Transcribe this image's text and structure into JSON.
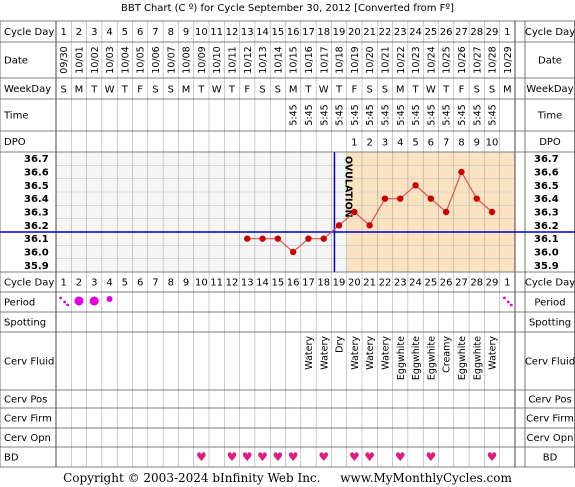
{
  "title": "BBT Chart (C º) for Cycle September 30, 2012  [Converted from Fº]",
  "copyright": "Copyright © 2003-2024 bInfinity Web Inc.",
  "site": "www.MyMonthlyCycles.com",
  "labels": {
    "cycle_day": "Cycle Day",
    "date": "Date",
    "weekday": "WeekDay",
    "time": "Time",
    "dpo": "DPO",
    "period": "Period",
    "spotting": "Spotting",
    "cerv_fluid": "Cerv Fluid",
    "cerv_pos": "Cerv Pos",
    "cerv_firm": "Cerv Firm",
    "cerv_opn": "Cerv Opn",
    "bd": "BD",
    "ovulation": "OVULATION"
  },
  "colors": {
    "chart_bg": "#f5f5f5",
    "post_ovulation_bg": "#fbe3c2",
    "grid": "#c8c8c8",
    "temp_line": "#e05050",
    "temp_point": "#cc0000",
    "coverline": "#0000cc",
    "ovulation_line": "#0000cc",
    "period": "#e000e0",
    "heart": "#e01c7a",
    "label_bg": "#f0f0f0"
  },
  "cycle_days": [
    "1",
    "2",
    "3",
    "4",
    "5",
    "6",
    "7",
    "8",
    "9",
    "10",
    "11",
    "12",
    "13",
    "14",
    "15",
    "16",
    "17",
    "18",
    "19",
    "20",
    "21",
    "22",
    "23",
    "24",
    "25",
    "26",
    "27",
    "28",
    "29",
    "1"
  ],
  "dates": [
    "09/30",
    "10/01",
    "10/02",
    "10/03",
    "10/04",
    "10/05",
    "10/06",
    "10/07",
    "10/08",
    "10/09",
    "10/10",
    "10/11",
    "10/12",
    "10/13",
    "10/14",
    "10/15",
    "10/16",
    "10/17",
    "10/18",
    "10/19",
    "10/20",
    "10/21",
    "10/22",
    "10/23",
    "10/24",
    "10/25",
    "10/26",
    "10/27",
    "10/28",
    "10/29"
  ],
  "weekdays": [
    "S",
    "M",
    "T",
    "W",
    "T",
    "F",
    "S",
    "S",
    "M",
    "T",
    "W",
    "T",
    "F",
    "S",
    "S",
    "M",
    "T",
    "W",
    "T",
    "F",
    "S",
    "S",
    "M",
    "T",
    "W",
    "T",
    "F",
    "S",
    "S",
    "M"
  ],
  "times": [
    "",
    "",
    "",
    "",
    "",
    "",
    "",
    "",
    "",
    "",
    "",
    "",
    "",
    "",
    "",
    "5:45",
    "5:45",
    "5:45",
    "5:45",
    "5:45",
    "5:45",
    "5:45",
    "5:45",
    "5:45",
    "5:45",
    "5:45",
    "5:45",
    "5:45",
    "5:45",
    ""
  ],
  "dpo": [
    "",
    "",
    "",
    "",
    "",
    "",
    "",
    "",
    "",
    "",
    "",
    "",
    "",
    "",
    "",
    "",
    "",
    "",
    "",
    "1",
    "2",
    "3",
    "4",
    "5",
    "6",
    "7",
    "8",
    "9",
    "10",
    ""
  ],
  "period": [
    "spot",
    "heavy",
    "heavy",
    "light",
    "",
    "",
    "",
    "",
    "",
    "",
    "",
    "",
    "",
    "",
    "",
    "",
    "",
    "",
    "",
    "",
    "",
    "",
    "",
    "",
    "",
    "",
    "",
    "",
    "",
    "spot"
  ],
  "cerv_fluid": [
    "",
    "",
    "",
    "",
    "",
    "",
    "",
    "",
    "",
    "",
    "",
    "",
    "",
    "",
    "",
    "",
    "Watery",
    "Watery",
    "Dry",
    "Watery",
    "Watery",
    "Watery",
    "Eggwhite",
    "Eggwhite",
    "Eggwhite",
    "Creamy",
    "Eggwhite",
    "Eggwhite",
    "Watery",
    ""
  ],
  "bd": [
    false,
    false,
    false,
    false,
    false,
    false,
    false,
    false,
    false,
    true,
    false,
    true,
    true,
    true,
    true,
    true,
    false,
    true,
    false,
    true,
    true,
    false,
    true,
    false,
    true,
    false,
    false,
    false,
    true,
    false
  ],
  "chart_data": {
    "type": "line",
    "x": [
      13,
      14,
      15,
      16,
      17,
      18,
      19,
      20,
      21,
      22,
      23,
      24,
      25,
      26,
      27,
      28,
      29
    ],
    "series": [
      {
        "values": [
          36.1,
          36.1,
          36.1,
          36.0,
          36.1,
          36.1,
          36.2,
          36.3,
          36.2,
          36.4,
          36.4,
          36.5,
          36.4,
          36.3,
          36.6,
          36.4,
          36.3
        ]
      }
    ],
    "y_ticks": [
      "36.7",
      "36.6",
      "36.5",
      "36.4",
      "36.3",
      "36.2",
      "36.1",
      "36.0",
      "35.9"
    ],
    "ylim": [
      35.85,
      36.75
    ],
    "coverline": 36.15,
    "ovulation_day": 19,
    "xlabel": "Cycle Day",
    "ylabel": ""
  }
}
